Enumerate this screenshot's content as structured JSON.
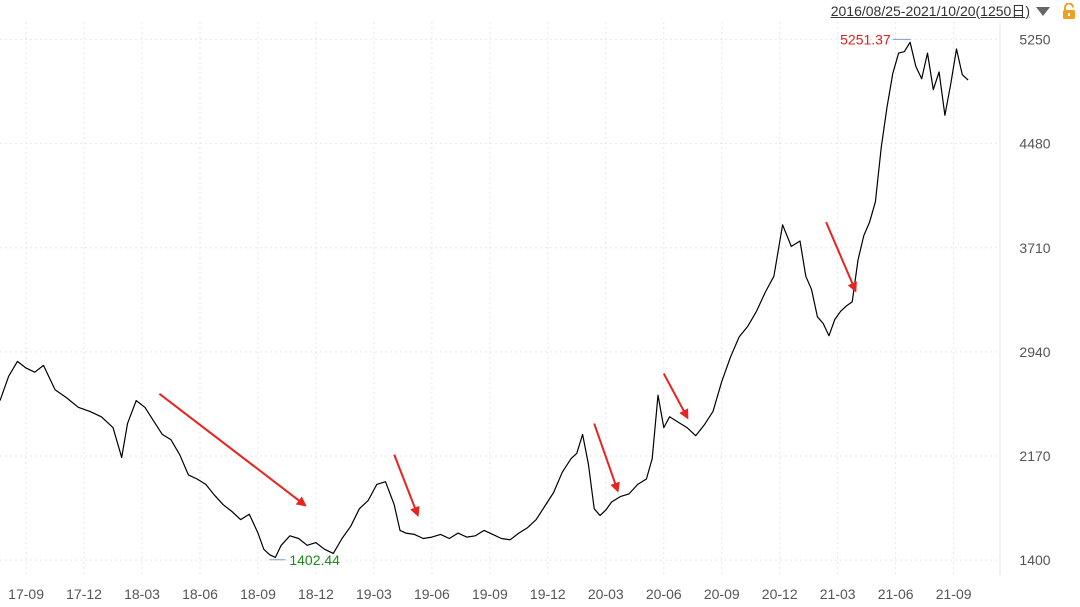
{
  "header": {
    "range_label": "2016/08/25-2021/10/20(1250日)",
    "dropdown_icon": "chevron-down-icon",
    "lock_icon": "unlock-icon"
  },
  "colors": {
    "line": "#000000",
    "grid": "#e6e6e6",
    "max_label": "#e0201f",
    "min_label": "#1a8a1a",
    "arrow": "#e8241f",
    "axis_text": "#555555"
  },
  "chart_data": {
    "type": "line",
    "title": "",
    "xlabel": "",
    "ylabel": "",
    "y_ticks": [
      1400,
      2170,
      2940,
      3710,
      4480,
      5250
    ],
    "ylim": [
      1290,
      5380
    ],
    "x_ticks": [
      "17-09",
      "17-12",
      "18-03",
      "18-06",
      "18-09",
      "18-12",
      "19-03",
      "19-06",
      "19-09",
      "19-12",
      "20-03",
      "20-06",
      "20-09",
      "20-12",
      "21-03",
      "21-06",
      "21-09"
    ],
    "x_tick_positions": [
      0,
      2,
      4,
      6,
      8,
      10,
      12,
      14,
      16,
      18,
      20,
      22,
      24,
      26,
      28,
      30,
      32
    ],
    "xlim": [
      -0.9,
      33.6
    ],
    "grid": true,
    "series": [
      {
        "x": [
          -0.9,
          -0.6,
          -0.3,
          0.0,
          0.3,
          0.6,
          1.0,
          1.4,
          1.8,
          2.2,
          2.6,
          3.0,
          3.3,
          3.5,
          3.8,
          4.1,
          4.4,
          4.7,
          5.0,
          5.3,
          5.6,
          5.9,
          6.2,
          6.5,
          6.8,
          7.1,
          7.4,
          7.7,
          8.0,
          8.2,
          8.4,
          8.6,
          8.8,
          9.1,
          9.4,
          9.7,
          10.0,
          10.3,
          10.6,
          10.9,
          11.2,
          11.5,
          11.8,
          12.1,
          12.4,
          12.7,
          12.9,
          13.1,
          13.4,
          13.7,
          14.0,
          14.3,
          14.6,
          14.9,
          15.2,
          15.5,
          15.8,
          16.1,
          16.4,
          16.7,
          17.0,
          17.3,
          17.6,
          17.9,
          18.2,
          18.5,
          18.8,
          19.0,
          19.2,
          19.4,
          19.6,
          19.8,
          20.0,
          20.2,
          20.5,
          20.8,
          21.1,
          21.4,
          21.6,
          21.8,
          22.0,
          22.2,
          22.5,
          22.8,
          23.1,
          23.4,
          23.7,
          24.0,
          24.3,
          24.6,
          24.9,
          25.2,
          25.5,
          25.8,
          26.1,
          26.4,
          26.7,
          26.9,
          27.1,
          27.3,
          27.5,
          27.7,
          27.9,
          28.1,
          28.3,
          28.5,
          28.7,
          28.9,
          29.1,
          29.3,
          29.5,
          29.7,
          29.9,
          30.1,
          30.3,
          30.5,
          30.7,
          30.9,
          31.1,
          31.3,
          31.5,
          31.7,
          31.9,
          32.1,
          32.3,
          32.5
        ],
        "values": [
          2580,
          2760,
          2870,
          2820,
          2790,
          2840,
          2660,
          2600,
          2530,
          2500,
          2460,
          2380,
          2160,
          2410,
          2580,
          2530,
          2430,
          2330,
          2290,
          2180,
          2030,
          2000,
          1960,
          1880,
          1810,
          1760,
          1700,
          1740,
          1600,
          1480,
          1440,
          1420,
          1510,
          1580,
          1560,
          1510,
          1530,
          1480,
          1450,
          1560,
          1650,
          1780,
          1840,
          1960,
          1980,
          1810,
          1620,
          1600,
          1590,
          1560,
          1570,
          1590,
          1560,
          1600,
          1570,
          1580,
          1620,
          1590,
          1560,
          1550,
          1600,
          1640,
          1700,
          1800,
          1900,
          2050,
          2150,
          2190,
          2330,
          2110,
          1780,
          1730,
          1770,
          1830,
          1870,
          1890,
          1960,
          2000,
          2150,
          2620,
          2380,
          2460,
          2420,
          2380,
          2320,
          2400,
          2500,
          2720,
          2900,
          3050,
          3130,
          3240,
          3380,
          3500,
          3880,
          3720,
          3760,
          3500,
          3400,
          3200,
          3150,
          3060,
          3180,
          3240,
          3280,
          3310,
          3620,
          3800,
          3900,
          4050,
          4450,
          4750,
          5000,
          5150,
          5160,
          5230,
          5050,
          4960,
          5150,
          4880,
          5010,
          4690,
          4920,
          5180,
          4990,
          4950
        ]
      }
    ],
    "max_point": {
      "x": 29.9,
      "value": 5251.37,
      "label": "5251.37"
    },
    "min_point": {
      "x": 8.6,
      "value": 1402.44,
      "label": "1402.44"
    },
    "annotations": [
      {
        "type": "arrow",
        "from": [
          4.6,
          2630
        ],
        "to": [
          9.6,
          1810
        ]
      },
      {
        "type": "arrow",
        "from": [
          12.7,
          2180
        ],
        "to": [
          13.5,
          1740
        ]
      },
      {
        "type": "arrow",
        "from": [
          19.6,
          2410
        ],
        "to": [
          20.4,
          1920
        ]
      },
      {
        "type": "arrow",
        "from": [
          22.0,
          2780
        ],
        "to": [
          22.8,
          2460
        ]
      },
      {
        "type": "arrow",
        "from": [
          27.6,
          3900
        ],
        "to": [
          28.6,
          3400
        ]
      }
    ]
  }
}
